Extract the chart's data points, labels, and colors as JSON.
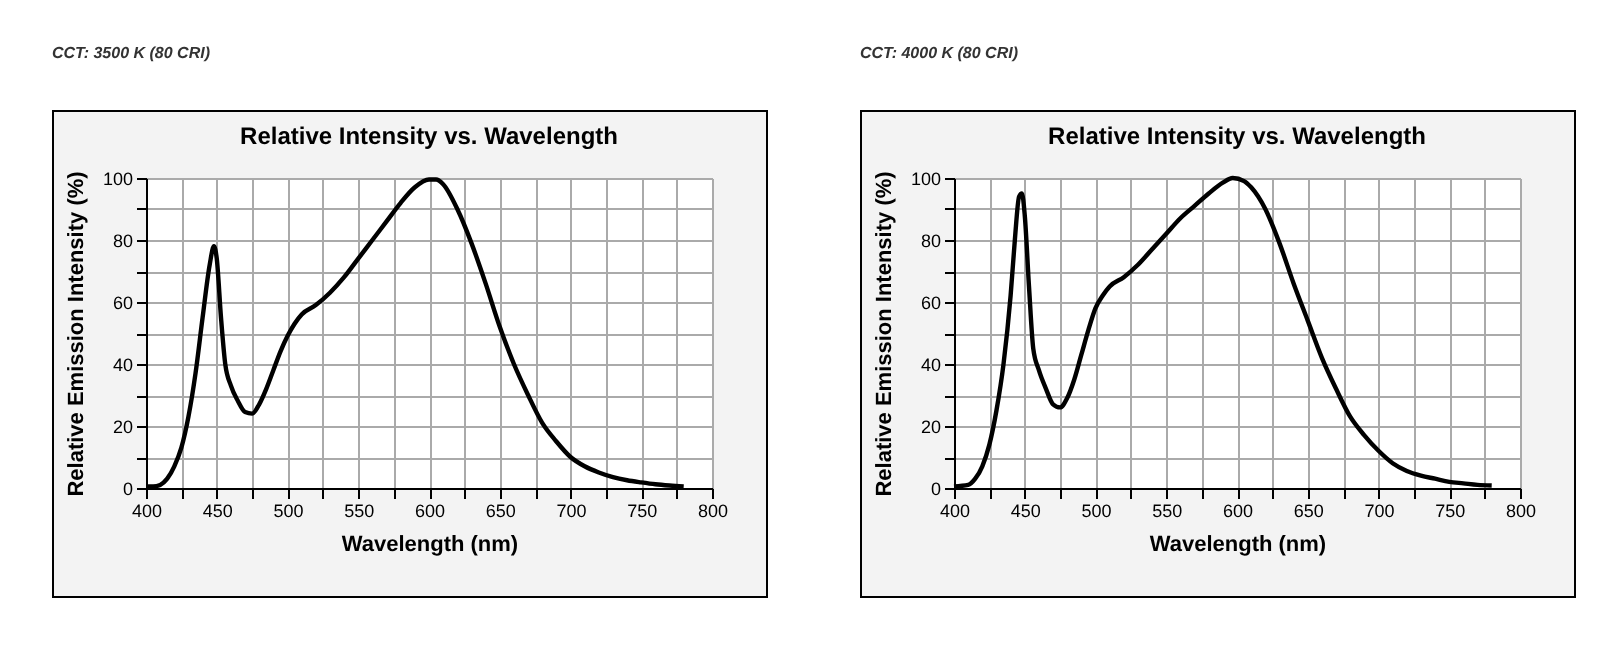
{
  "chart_data": [
    {
      "type": "line",
      "subtitle": "CCT: 3500 K (80 CRI)",
      "title": "Relative Intensity vs. Wavelength",
      "xlabel": "Wavelength (nm)",
      "ylabel": "Relative Emission Intensity (%)",
      "x": [
        400,
        405,
        410,
        415,
        420,
        425,
        430,
        435,
        440,
        445,
        448,
        450,
        453,
        456,
        460,
        465,
        470,
        475,
        480,
        485,
        490,
        495,
        500,
        505,
        510,
        520,
        530,
        540,
        550,
        560,
        570,
        580,
        590,
        600,
        605,
        610,
        620,
        630,
        640,
        650,
        660,
        670,
        680,
        690,
        700,
        710,
        720,
        730,
        740,
        750,
        760,
        770,
        780
      ],
      "series": [
        {
          "color": "#000000",
          "values": [
            0.5,
            0.5,
            1,
            3,
            7,
            13,
            23,
            37,
            55,
            72,
            78,
            74,
            55,
            40,
            33,
            28,
            24.5,
            24,
            27,
            32,
            38,
            44,
            49,
            53,
            56,
            59,
            63,
            68,
            74,
            80,
            86,
            92,
            97,
            99.5,
            99.5,
            98,
            90,
            79,
            66,
            52,
            40,
            30,
            21,
            15,
            10,
            7,
            5,
            3.5,
            2.5,
            1.8,
            1.2,
            0.8,
            0.5
          ]
        }
      ],
      "xlim": [
        400,
        800
      ],
      "xticks": [
        400,
        {
          "value": 425,
          "label": null
        },
        450,
        {
          "value": 475,
          "label": null
        },
        500,
        {
          "value": 525,
          "label": null
        },
        550,
        {
          "value": 575,
          "label": null
        },
        600,
        {
          "value": 625,
          "label": null
        },
        650,
        {
          "value": 675,
          "label": null
        },
        700,
        {
          "value": 725,
          "label": null
        },
        750,
        {
          "value": 775,
          "label": null
        },
        800
      ],
      "ylim": [
        0,
        100
      ],
      "yticks": [
        0,
        {
          "value": 10,
          "label": null
        },
        20,
        {
          "value": 30,
          "label": null
        },
        40,
        {
          "value": 50,
          "label": null
        },
        60,
        {
          "value": 70,
          "label": null
        },
        80,
        {
          "value": 90,
          "label": null
        },
        100
      ],
      "grid": true,
      "marker": "none",
      "line_style": "solid"
    },
    {
      "type": "line",
      "subtitle": "CCT: 4000 K (80 CRI)",
      "title": "Relative Intensity vs. Wavelength",
      "xlabel": "Wavelength (nm)",
      "ylabel": "Relative Emission Intensity (%)",
      "x": [
        400,
        410,
        415,
        420,
        425,
        430,
        435,
        440,
        443,
        446,
        448,
        450,
        453,
        456,
        460,
        465,
        470,
        475,
        480,
        485,
        490,
        495,
        500,
        505,
        510,
        520,
        530,
        540,
        550,
        560,
        570,
        580,
        590,
        597,
        605,
        610,
        620,
        630,
        640,
        650,
        660,
        670,
        680,
        690,
        700,
        710,
        720,
        730,
        740,
        750,
        760,
        770,
        780
      ],
      "series": [
        {
          "color": "#000000",
          "values": [
            0.5,
            1,
            3,
            7,
            14,
            25,
            40,
            62,
            80,
            94,
            95,
            88,
            65,
            45,
            38,
            32,
            27,
            26,
            29,
            35,
            43,
            51,
            58,
            62,
            65,
            68,
            72,
            77,
            82,
            87,
            91,
            95,
            98.5,
            100,
            99,
            97,
            90,
            79,
            66,
            54,
            42,
            32,
            23,
            17,
            12,
            8,
            5.5,
            4,
            3,
            2,
            1.5,
            1,
            0.8
          ]
        }
      ],
      "xlim": [
        400,
        800
      ],
      "xticks": [
        400,
        {
          "value": 425,
          "label": null
        },
        450,
        {
          "value": 475,
          "label": null
        },
        500,
        {
          "value": 525,
          "label": null
        },
        550,
        {
          "value": 575,
          "label": null
        },
        600,
        {
          "value": 625,
          "label": null
        },
        650,
        {
          "value": 675,
          "label": null
        },
        700,
        {
          "value": 725,
          "label": null
        },
        750,
        {
          "value": 775,
          "label": null
        },
        800
      ],
      "ylim": [
        0,
        100
      ],
      "yticks": [
        0,
        {
          "value": 10,
          "label": null
        },
        20,
        {
          "value": 30,
          "label": null
        },
        40,
        {
          "value": 50,
          "label": null
        },
        60,
        {
          "value": 70,
          "label": null
        },
        80,
        {
          "value": 90,
          "label": null
        },
        100
      ],
      "grid": true,
      "marker": "none",
      "line_style": "solid"
    }
  ]
}
